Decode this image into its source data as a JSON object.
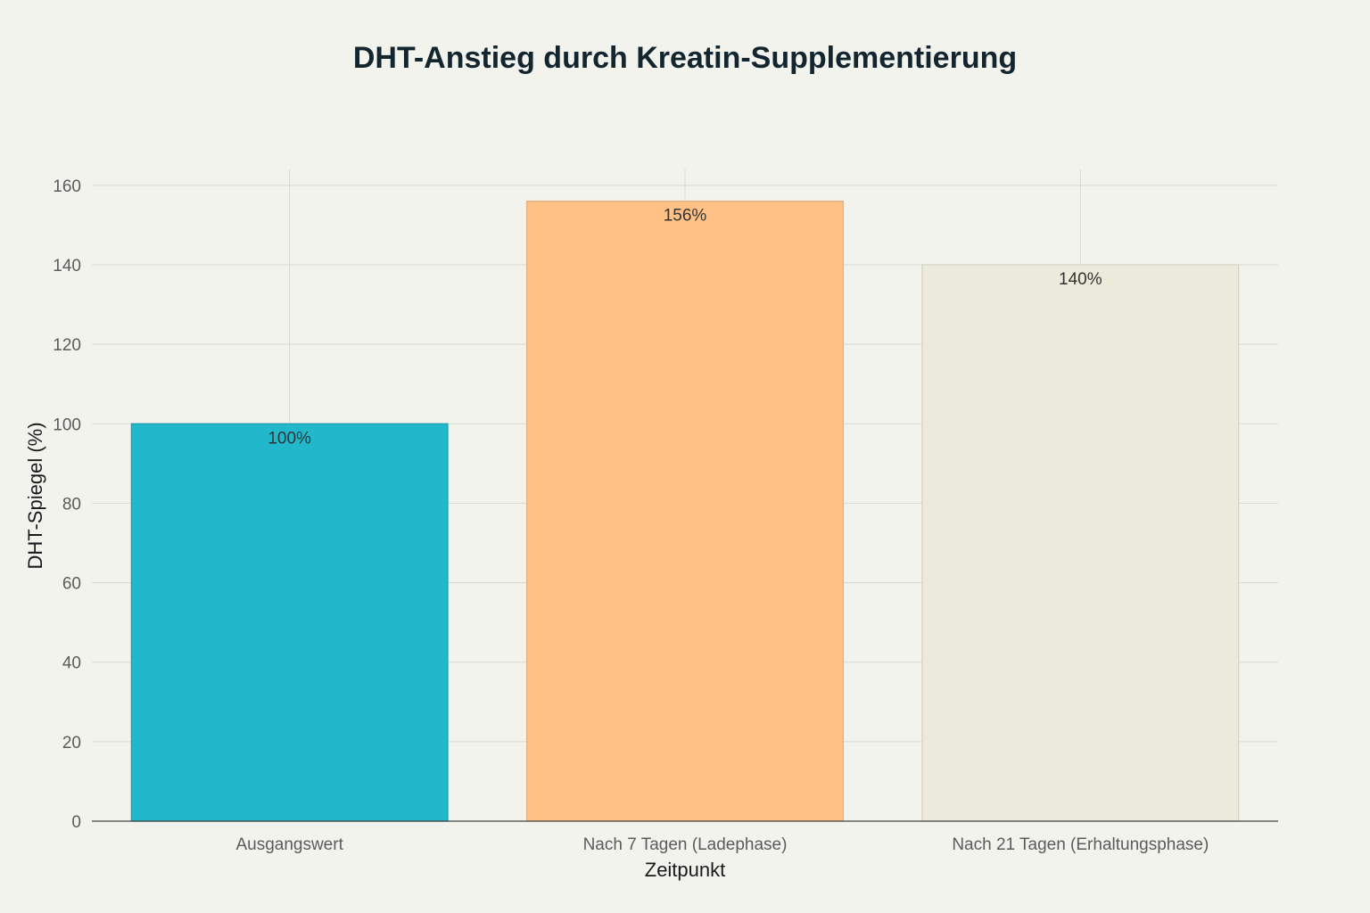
{
  "chart_data": {
    "type": "bar",
    "title": "DHT-Anstieg durch Kreatin-Supplementierung",
    "xlabel": "Zeitpunkt",
    "ylabel": "DHT-Spiegel (%)",
    "categories": [
      "Ausgangswert",
      "Nach 7 Tagen (Ladephase)",
      "Nach 21 Tagen (Erhaltungsphase)"
    ],
    "values": [
      100,
      156,
      140
    ],
    "data_labels": [
      "100%",
      "156%",
      "140%"
    ],
    "colors": [
      "#21b8cc",
      "#ffc186",
      "#eceadb"
    ],
    "border_colors": [
      "#1a9cad",
      "#e5ad78",
      "#d3d1c2"
    ],
    "ylim": [
      0,
      164
    ],
    "yticks": [
      0,
      20,
      40,
      60,
      80,
      100,
      120,
      140,
      160
    ],
    "grid": true,
    "legend": "none"
  }
}
